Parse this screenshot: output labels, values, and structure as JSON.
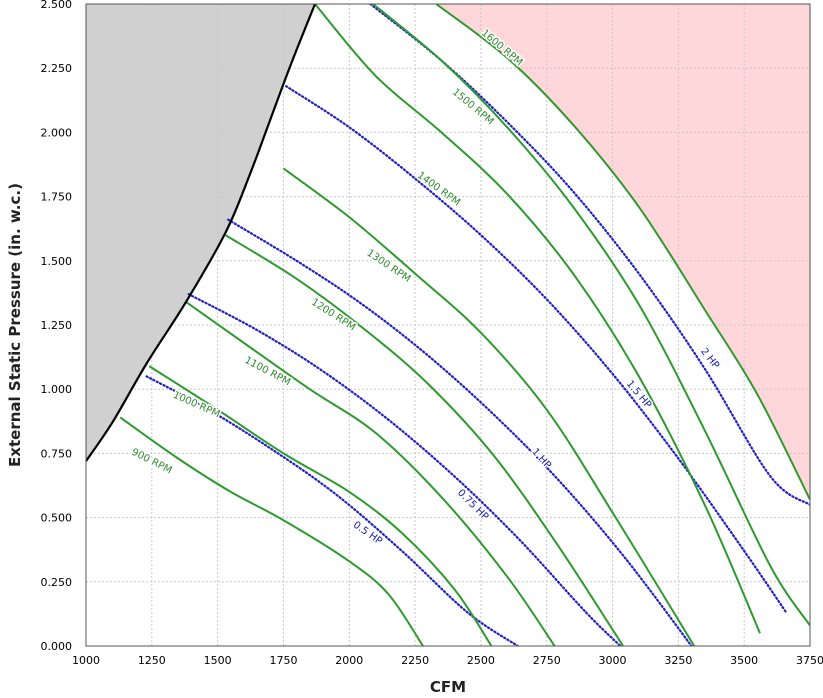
{
  "chart_data": {
    "type": "line",
    "xlabel": "CFM",
    "ylabel": "External Static Pressure (in. w.c.)",
    "xlim": [
      1000,
      3750
    ],
    "ylim": [
      0,
      2.5
    ],
    "x_ticks": [
      "1000",
      "1250",
      "1500",
      "1750",
      "2000",
      "2250",
      "2500",
      "2750",
      "3000",
      "3250",
      "3500",
      "3750"
    ],
    "y_ticks": [
      "0.000",
      "0.250",
      "0.500",
      "0.750",
      "1.000",
      "1.250",
      "1.500",
      "1.750",
      "2.000",
      "2.250",
      "2.500"
    ],
    "grid": true,
    "colors": {
      "rpm": "#2e9a2e",
      "hp": "#2020c8",
      "stall_region": "#d0d0d0",
      "over_region": "#ffd6d9",
      "boundary": "#000000"
    },
    "regions": {
      "stall_boundary": [
        [
          1000,
          0.72
        ],
        [
          1100,
          0.87
        ],
        [
          1230,
          1.1
        ],
        [
          1380,
          1.34
        ],
        [
          1530,
          1.61
        ],
        [
          1620,
          1.83
        ],
        [
          1700,
          2.05
        ],
        [
          1780,
          2.27
        ],
        [
          1870,
          2.5
        ]
      ],
      "over_boundary": [
        [
          2330,
          2.5
        ],
        [
          2600,
          2.29
        ],
        [
          2850,
          2.03
        ],
        [
          3100,
          1.71
        ],
        [
          3350,
          1.31
        ],
        [
          3550,
          0.98
        ],
        [
          3750,
          0.57
        ]
      ]
    },
    "rpm_series": [
      {
        "name": "900 RPM",
        "points": [
          [
            1130,
            0.89
          ],
          [
            1350,
            0.73
          ],
          [
            1550,
            0.6
          ],
          [
            1750,
            0.49
          ],
          [
            2000,
            0.33
          ],
          [
            2150,
            0.2
          ],
          [
            2280,
            0
          ]
        ]
      },
      {
        "name": "1000 RPM",
        "points": [
          [
            1240,
            1.09
          ],
          [
            1500,
            0.92
          ],
          [
            1750,
            0.75
          ],
          [
            2000,
            0.6
          ],
          [
            2200,
            0.44
          ],
          [
            2400,
            0.22
          ],
          [
            2540,
            0
          ]
        ]
      },
      {
        "name": "1100 RPM",
        "points": [
          [
            1380,
            1.34
          ],
          [
            1600,
            1.18
          ],
          [
            1850,
            1.0
          ],
          [
            2100,
            0.83
          ],
          [
            2350,
            0.58
          ],
          [
            2600,
            0.27
          ],
          [
            2780,
            0
          ]
        ]
      },
      {
        "name": "1200 RPM",
        "points": [
          [
            1530,
            1.6
          ],
          [
            1800,
            1.43
          ],
          [
            2050,
            1.24
          ],
          [
            2300,
            1.02
          ],
          [
            2550,
            0.74
          ],
          [
            2800,
            0.38
          ],
          [
            3040,
            0
          ]
        ]
      },
      {
        "name": "1300 RPM",
        "points": [
          [
            1750,
            1.86
          ],
          [
            2000,
            1.67
          ],
          [
            2250,
            1.45
          ],
          [
            2500,
            1.22
          ],
          [
            2750,
            0.92
          ],
          [
            3000,
            0.52
          ],
          [
            3310,
            0
          ]
        ]
      },
      {
        "name": "1400 RPM",
        "points": [
          [
            1870,
            2.5
          ],
          [
            2100,
            2.22
          ],
          [
            2350,
            2.0
          ],
          [
            2600,
            1.76
          ],
          [
            2850,
            1.45
          ],
          [
            3100,
            1.05
          ],
          [
            3350,
            0.55
          ],
          [
            3560,
            0.05
          ]
        ]
      },
      {
        "name": "1500 RPM",
        "points": [
          [
            2090,
            2.5
          ],
          [
            2350,
            2.28
          ],
          [
            2600,
            2.02
          ],
          [
            2850,
            1.71
          ],
          [
            3100,
            1.33
          ],
          [
            3350,
            0.84
          ],
          [
            3600,
            0.31
          ],
          [
            3750,
            0.08
          ]
        ]
      },
      {
        "name": "1600 RPM",
        "points": [
          [
            2330,
            2.5
          ],
          [
            2600,
            2.29
          ],
          [
            2850,
            2.03
          ],
          [
            3100,
            1.71
          ],
          [
            3350,
            1.31
          ],
          [
            3550,
            0.98
          ],
          [
            3750,
            0.57
          ]
        ]
      }
    ],
    "hp_series": [
      {
        "name": "0.5 HP",
        "points": [
          [
            1230,
            1.05
          ],
          [
            1450,
            0.93
          ],
          [
            1700,
            0.77
          ],
          [
            1950,
            0.59
          ],
          [
            2200,
            0.37
          ],
          [
            2450,
            0.13
          ],
          [
            2640,
            0
          ]
        ]
      },
      {
        "name": "0.75 HP",
        "points": [
          [
            1390,
            1.37
          ],
          [
            1650,
            1.23
          ],
          [
            1900,
            1.07
          ],
          [
            2150,
            0.88
          ],
          [
            2400,
            0.66
          ],
          [
            2650,
            0.41
          ],
          [
            2900,
            0.13
          ],
          [
            3030,
            0
          ]
        ]
      },
      {
        "name": "1 HP",
        "points": [
          [
            1540,
            1.66
          ],
          [
            1800,
            1.5
          ],
          [
            2050,
            1.33
          ],
          [
            2300,
            1.13
          ],
          [
            2550,
            0.9
          ],
          [
            2800,
            0.64
          ],
          [
            3050,
            0.34
          ],
          [
            3300,
            0
          ]
        ]
      },
      {
        "name": "1.5 HP",
        "points": [
          [
            1760,
            2.18
          ],
          [
            2000,
            2.02
          ],
          [
            2250,
            1.82
          ],
          [
            2500,
            1.6
          ],
          [
            2750,
            1.35
          ],
          [
            3000,
            1.06
          ],
          [
            3250,
            0.73
          ],
          [
            3500,
            0.37
          ],
          [
            3660,
            0.13
          ]
        ]
      },
      {
        "name": "2 HP",
        "points": [
          [
            2080,
            2.5
          ],
          [
            2350,
            2.28
          ],
          [
            2600,
            2.04
          ],
          [
            2850,
            1.77
          ],
          [
            3100,
            1.45
          ],
          [
            3350,
            1.08
          ],
          [
            3600,
            0.66
          ],
          [
            3750,
            0.55
          ]
        ]
      }
    ],
    "labels": [
      {
        "text": "900 RPM",
        "at": [
          1250,
          0.72
        ],
        "angle": 27,
        "kind": "rpm"
      },
      {
        "text": "1000 RPM",
        "at": [
          1420,
          0.94
        ],
        "angle": 24,
        "kind": "rpm"
      },
      {
        "text": "1100 RPM",
        "at": [
          1690,
          1.07
        ],
        "angle": 28,
        "kind": "rpm"
      },
      {
        "text": "1200 RPM",
        "at": [
          1940,
          1.29
        ],
        "angle": 33,
        "kind": "rpm"
      },
      {
        "text": "1300 RPM",
        "at": [
          2150,
          1.48
        ],
        "angle": 34,
        "kind": "rpm"
      },
      {
        "text": "1400 RPM",
        "at": [
          2340,
          1.78
        ],
        "angle": 36,
        "kind": "rpm"
      },
      {
        "text": "1500 RPM",
        "at": [
          2470,
          2.1
        ],
        "angle": 40,
        "kind": "rpm"
      },
      {
        "text": "1600 RPM",
        "at": [
          2580,
          2.33
        ],
        "angle": 40,
        "kind": "rpm"
      },
      {
        "text": "0.5 HP",
        "at": [
          2070,
          0.44
        ],
        "angle": 35,
        "kind": "hp"
      },
      {
        "text": "0.75 HP",
        "at": [
          2470,
          0.55
        ],
        "angle": 45,
        "kind": "hp"
      },
      {
        "text": "1 HP",
        "at": [
          2730,
          0.73
        ],
        "angle": 48,
        "kind": "hp"
      },
      {
        "text": "1.5 HP",
        "at": [
          3100,
          0.98
        ],
        "angle": 50,
        "kind": "hp"
      },
      {
        "text": "2 HP",
        "at": [
          3370,
          1.12
        ],
        "angle": 52,
        "kind": "hp"
      }
    ]
  }
}
